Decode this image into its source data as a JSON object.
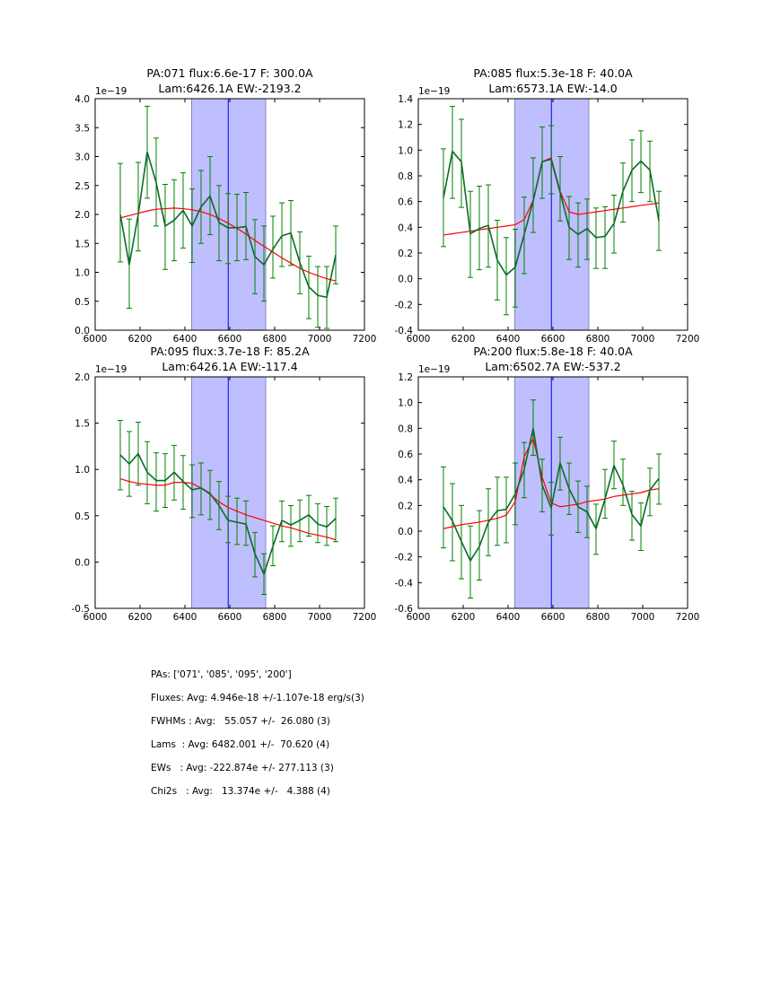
{
  "chart_data": [
    {
      "type": "line",
      "title": [
        "PA:071 flux:6.6e-17 F: 300.0A",
        "Lam:6426.1A EW:-2193.2"
      ],
      "offset_label": "1e−19",
      "xlim": [
        6000,
        7200
      ],
      "ylim": [
        0.0,
        4.0
      ],
      "xticks": [
        6000,
        6200,
        6400,
        6600,
        6800,
        7000,
        7200
      ],
      "yticks": [
        0.0,
        0.5,
        1.0,
        1.5,
        2.0,
        2.5,
        3.0,
        3.5,
        4.0
      ],
      "ytick_decimals": 1,
      "x_start": 6112,
      "x_step": 40,
      "span": [
        6430,
        6760
      ],
      "vline": 6593,
      "data": [
        2.0,
        1.13,
        2.0,
        3.08,
        2.55,
        1.8,
        1.9,
        2.07,
        1.8,
        2.13,
        2.32,
        1.86,
        1.77,
        1.77,
        1.79,
        1.27,
        1.13,
        1.4,
        1.63,
        1.68,
        1.17,
        0.75,
        0.6,
        0.57,
        1.3
      ],
      "err_low": [
        1.18,
        0.38,
        1.37,
        2.28,
        1.8,
        1.05,
        1.2,
        1.42,
        1.17,
        1.5,
        1.65,
        1.2,
        1.15,
        1.2,
        1.22,
        0.63,
        0.5,
        0.9,
        1.1,
        1.12,
        0.63,
        0.2,
        0.05,
        0.03,
        0.8
      ],
      "err_high": [
        2.88,
        1.92,
        2.9,
        3.87,
        3.32,
        2.52,
        2.6,
        2.72,
        2.44,
        2.76,
        3.0,
        2.5,
        2.36,
        2.35,
        2.38,
        1.91,
        1.8,
        1.97,
        2.2,
        2.24,
        1.7,
        1.28,
        1.1,
        1.1,
        1.8
      ],
      "model": [
        1.94,
        1.98,
        2.02,
        2.06,
        2.09,
        2.1,
        2.11,
        2.1,
        2.08,
        2.05,
        2.0,
        1.93,
        1.85,
        1.76,
        1.66,
        1.55,
        1.45,
        1.35,
        1.25,
        1.16,
        1.07,
        1.0,
        0.94,
        0.89,
        0.85
      ]
    },
    {
      "type": "line",
      "title": [
        "PA:085 flux:5.3e-18 F: 40.0A",
        "Lam:6573.1A EW:-14.0"
      ],
      "offset_label": "1e−19",
      "xlim": [
        6000,
        7200
      ],
      "ylim": [
        -0.4,
        1.4
      ],
      "xticks": [
        6000,
        6200,
        6400,
        6600,
        6800,
        7000,
        7200
      ],
      "yticks": [
        -0.4,
        -0.2,
        0.0,
        0.2,
        0.4,
        0.6,
        0.8,
        1.0,
        1.2,
        1.4
      ],
      "ytick_decimals": 1,
      "x_start": 6112,
      "x_step": 40,
      "span": [
        6430,
        6760
      ],
      "vline": 6593,
      "data": [
        0.63,
        0.99,
        0.91,
        0.35,
        0.39,
        0.415,
        0.145,
        0.03,
        0.09,
        0.345,
        0.605,
        0.91,
        0.93,
        0.67,
        0.4,
        0.345,
        0.39,
        0.32,
        0.33,
        0.43,
        0.68,
        0.845,
        0.915,
        0.845,
        0.45
      ],
      "err_low": [
        0.25,
        0.625,
        0.555,
        0.01,
        0.07,
        0.09,
        -0.165,
        -0.28,
        -0.22,
        0.04,
        0.36,
        0.625,
        0.66,
        0.45,
        0.15,
        0.09,
        0.15,
        0.08,
        0.08,
        0.2,
        0.44,
        0.6,
        0.67,
        0.6,
        0.22
      ],
      "err_high": [
        1.01,
        1.34,
        1.24,
        0.68,
        0.72,
        0.73,
        0.455,
        0.32,
        0.385,
        0.635,
        0.94,
        1.18,
        1.19,
        0.95,
        0.64,
        0.59,
        0.62,
        0.55,
        0.56,
        0.65,
        0.9,
        1.08,
        1.15,
        1.07,
        0.68
      ],
      "model": [
        0.34,
        0.35,
        0.36,
        0.37,
        0.38,
        0.39,
        0.4,
        0.41,
        0.42,
        0.46,
        0.61,
        0.91,
        0.94,
        0.68,
        0.52,
        0.5,
        0.51,
        0.52,
        0.53,
        0.54,
        0.55,
        0.56,
        0.57,
        0.58,
        0.59
      ]
    },
    {
      "type": "line",
      "title": [
        "PA:095 flux:3.7e-18 F: 85.2A",
        "Lam:6426.1A EW:-117.4"
      ],
      "offset_label": "1e−19",
      "xlim": [
        6000,
        7200
      ],
      "ylim": [
        -0.5,
        2.0
      ],
      "xticks": [
        6000,
        6200,
        6400,
        6600,
        6800,
        7000,
        7200
      ],
      "yticks": [
        -0.5,
        0.0,
        0.5,
        1.0,
        1.5,
        2.0
      ],
      "ytick_decimals": 1,
      "x_start": 6112,
      "x_step": 40,
      "span": [
        6430,
        6760
      ],
      "vline": 6593,
      "data": [
        1.157,
        1.06,
        1.17,
        0.97,
        0.88,
        0.88,
        0.97,
        0.87,
        0.78,
        0.8,
        0.74,
        0.61,
        0.45,
        0.43,
        0.41,
        0.09,
        -0.13,
        0.17,
        0.45,
        0.4,
        0.45,
        0.51,
        0.41,
        0.38,
        0.47
      ],
      "err_low": [
        0.78,
        0.71,
        0.83,
        0.63,
        0.55,
        0.59,
        0.67,
        0.57,
        0.48,
        0.51,
        0.46,
        0.35,
        0.21,
        0.19,
        0.18,
        -0.16,
        -0.35,
        -0.04,
        0.22,
        0.17,
        0.22,
        0.28,
        0.21,
        0.18,
        0.22
      ],
      "err_high": [
        1.53,
        1.41,
        1.51,
        1.3,
        1.18,
        1.17,
        1.26,
        1.15,
        1.05,
        1.07,
        0.99,
        0.87,
        0.71,
        0.69,
        0.66,
        0.32,
        0.09,
        0.39,
        0.66,
        0.61,
        0.67,
        0.72,
        0.63,
        0.6,
        0.69
      ],
      "model": [
        0.9,
        0.87,
        0.85,
        0.84,
        0.83,
        0.83,
        0.86,
        0.86,
        0.85,
        0.8,
        0.73,
        0.65,
        0.59,
        0.55,
        0.51,
        0.48,
        0.45,
        0.42,
        0.39,
        0.37,
        0.34,
        0.31,
        0.29,
        0.27,
        0.24
      ]
    },
    {
      "type": "line",
      "title": [
        "PA:200 flux:5.8e-18 F: 40.0A",
        "Lam:6502.7A EW:-537.2"
      ],
      "offset_label": "1e−19",
      "xlim": [
        6000,
        7200
      ],
      "ylim": [
        -0.6,
        1.2
      ],
      "xticks": [
        6000,
        6200,
        6400,
        6600,
        6800,
        7000,
        7200
      ],
      "yticks": [
        -0.6,
        -0.4,
        -0.2,
        0.0,
        0.2,
        0.4,
        0.6,
        0.8,
        1.0,
        1.2
      ],
      "ytick_decimals": 1,
      "x_start": 6112,
      "x_step": 40,
      "span": [
        6430,
        6760
      ],
      "vline": 6593,
      "data": [
        0.19,
        0.08,
        -0.08,
        -0.23,
        -0.12,
        0.07,
        0.16,
        0.17,
        0.29,
        0.48,
        0.8,
        0.36,
        0.18,
        0.53,
        0.33,
        0.19,
        0.15,
        0.02,
        0.25,
        0.51,
        0.36,
        0.13,
        0.04,
        0.32,
        0.41
      ],
      "err_low": [
        -0.13,
        -0.23,
        -0.37,
        -0.52,
        -0.38,
        -0.19,
        -0.11,
        -0.09,
        0.05,
        0.26,
        0.59,
        0.15,
        -0.03,
        0.32,
        0.13,
        -0.01,
        -0.05,
        -0.18,
        0.1,
        0.33,
        0.2,
        -0.07,
        -0.15,
        0.12,
        0.21
      ],
      "err_high": [
        0.5,
        0.37,
        0.2,
        0.04,
        0.16,
        0.33,
        0.42,
        0.42,
        0.53,
        0.69,
        1.02,
        0.56,
        0.38,
        0.73,
        0.53,
        0.39,
        0.35,
        0.21,
        0.48,
        0.7,
        0.56,
        0.31,
        0.22,
        0.49,
        0.6
      ],
      "model": [
        0.02,
        0.035,
        0.05,
        0.06,
        0.07,
        0.085,
        0.1,
        0.125,
        0.23,
        0.58,
        0.72,
        0.42,
        0.22,
        0.19,
        0.2,
        0.21,
        0.23,
        0.24,
        0.25,
        0.27,
        0.28,
        0.29,
        0.3,
        0.32,
        0.33
      ]
    }
  ],
  "colors": {
    "data_line": "#0b6b2a",
    "errorbar": "#008000",
    "model": "#ff0000",
    "span_fill": "#bfbfff",
    "span_edge": "#8888bb",
    "vline": "#0000ff"
  },
  "stats": [
    "PAs: ['071', '085', '095', '200']",
    "Fluxes: Avg: 4.946e-18 +/-1.107e-18 erg/s(3)",
    "FWHMs : Avg:   55.057 +/-  26.080 (3)",
    "Lams  : Avg: 6482.001 +/-  70.620 (4)",
    "EWs   : Avg: -222.874e +/- 277.113 (3)",
    "Chi2s   : Avg:   13.374e +/-   4.388 (4)"
  ]
}
